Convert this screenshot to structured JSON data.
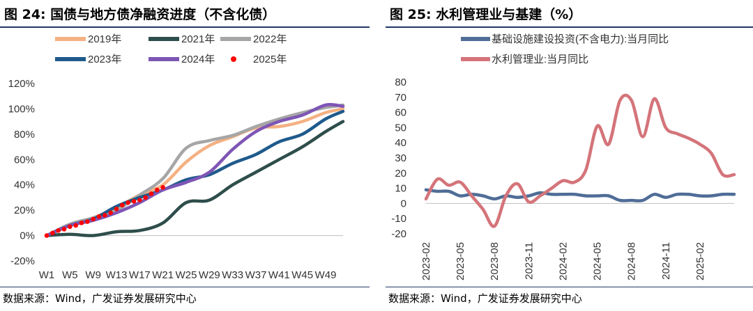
{
  "panels": [
    {
      "title": "图 24:  国债与地方债净融资进度（不含化债）",
      "source": "数据来源：Wind，广发证券发展研究中心"
    },
    {
      "title": "图 25:  水利管理业与基建（%）",
      "source": "数据来源：Wind，广发证券发展研究中心"
    }
  ],
  "chart_data": [
    {
      "type": "line",
      "title": "国债与地方债净融资进度（不含化债）",
      "xlabel": "",
      "ylabel": "",
      "ylim": [
        -20,
        120
      ],
      "yticks": [
        "-20%",
        "0%",
        "20%",
        "40%",
        "60%",
        "80%",
        "100%",
        "120%"
      ],
      "xticks": [
        "W1",
        "W5",
        "W9",
        "W13",
        "W17",
        "W21",
        "W25",
        "W29",
        "W33",
        "W37",
        "W41",
        "W45",
        "W49"
      ],
      "grid": false,
      "legend_position": "top",
      "x": [
        1,
        5,
        9,
        13,
        17,
        21,
        25,
        29,
        33,
        37,
        41,
        45,
        49,
        52
      ],
      "series": [
        {
          "name": "2019年",
          "color": "#f4b183",
          "style": "line",
          "values": [
            0,
            8,
            14,
            22,
            32,
            40,
            58,
            71,
            78,
            85,
            86,
            90,
            97,
            100
          ]
        },
        {
          "name": "2021年",
          "color": "#2e4e4b",
          "style": "line",
          "values": [
            0,
            1,
            0,
            3,
            4,
            10,
            26,
            28,
            40,
            50,
            60,
            70,
            82,
            90
          ]
        },
        {
          "name": "2022年",
          "color": "#a6a6a6",
          "style": "line",
          "values": [
            0,
            9,
            14,
            20,
            32,
            45,
            69,
            75,
            79,
            86,
            92,
            97,
            101,
            103
          ]
        },
        {
          "name": "2023年",
          "color": "#1f5a8c",
          "style": "line",
          "values": [
            0,
            8,
            13,
            23,
            30,
            36,
            44,
            48,
            57,
            64,
            74,
            80,
            92,
            98
          ]
        },
        {
          "name": "2024年",
          "color": "#7e56b5",
          "style": "line",
          "values": [
            0,
            8,
            12,
            18,
            26,
            36,
            42,
            50,
            68,
            82,
            90,
            95,
            103,
            102
          ]
        },
        {
          "name": "2025年",
          "color": "#ff0000",
          "style": "dots",
          "x": [
            1,
            2,
            3,
            4,
            5,
            6,
            7,
            8,
            9,
            10,
            11,
            12,
            13,
            14,
            15,
            16,
            17,
            18,
            19,
            20,
            21
          ],
          "values": [
            0,
            2,
            4,
            5,
            7,
            8,
            10,
            11,
            13,
            15,
            16,
            18,
            21,
            24,
            26,
            27,
            28,
            30,
            33,
            36,
            38
          ]
        }
      ]
    },
    {
      "type": "line",
      "title": "水利管理业与基建（%）",
      "xlabel": "",
      "ylabel": "",
      "ylim": [
        -20,
        80
      ],
      "yticks": [
        "-20",
        "-10",
        "0",
        "10",
        "20",
        "30",
        "40",
        "50",
        "60",
        "70",
        "80"
      ],
      "x": [
        "2023-02",
        "2023-03",
        "2023-04",
        "2023-05",
        "2023-06",
        "2023-07",
        "2023-08",
        "2023-09",
        "2023-10",
        "2023-11",
        "2023-12",
        "2024-01",
        "2024-02",
        "2024-03",
        "2024-04",
        "2024-05",
        "2024-06",
        "2024-07",
        "2024-08",
        "2024-09",
        "2024-10",
        "2024-11",
        "2024-12",
        "2025-01",
        "2025-02",
        "2025-03",
        "2025-04",
        "2025-05"
      ],
      "xticks": [
        "2023-02",
        "2023-05",
        "2023-08",
        "2023-11",
        "2024-02",
        "2024-05",
        "2024-08",
        "2024-11",
        "2025-02"
      ],
      "grid": false,
      "legend_position": "top-left",
      "series": [
        {
          "name": "基础设施建设投资(不含电力):当月同比",
          "color": "#4f6d97",
          "values": [
            9,
            8,
            8,
            5,
            6,
            5,
            3,
            5,
            4,
            5,
            7,
            6,
            6,
            6,
            5,
            5,
            5,
            2,
            2,
            2,
            6,
            4,
            6,
            6,
            5,
            5,
            6,
            6
          ]
        },
        {
          "name": "水利管理业:当月同比",
          "color": "#d4747a",
          "values": [
            3,
            16,
            12,
            14,
            5,
            -4,
            -15,
            5,
            13,
            1,
            5,
            10,
            15,
            14,
            22,
            51,
            39,
            68,
            68,
            44,
            69,
            50,
            46,
            43,
            39,
            33,
            19,
            19
          ]
        }
      ]
    }
  ]
}
